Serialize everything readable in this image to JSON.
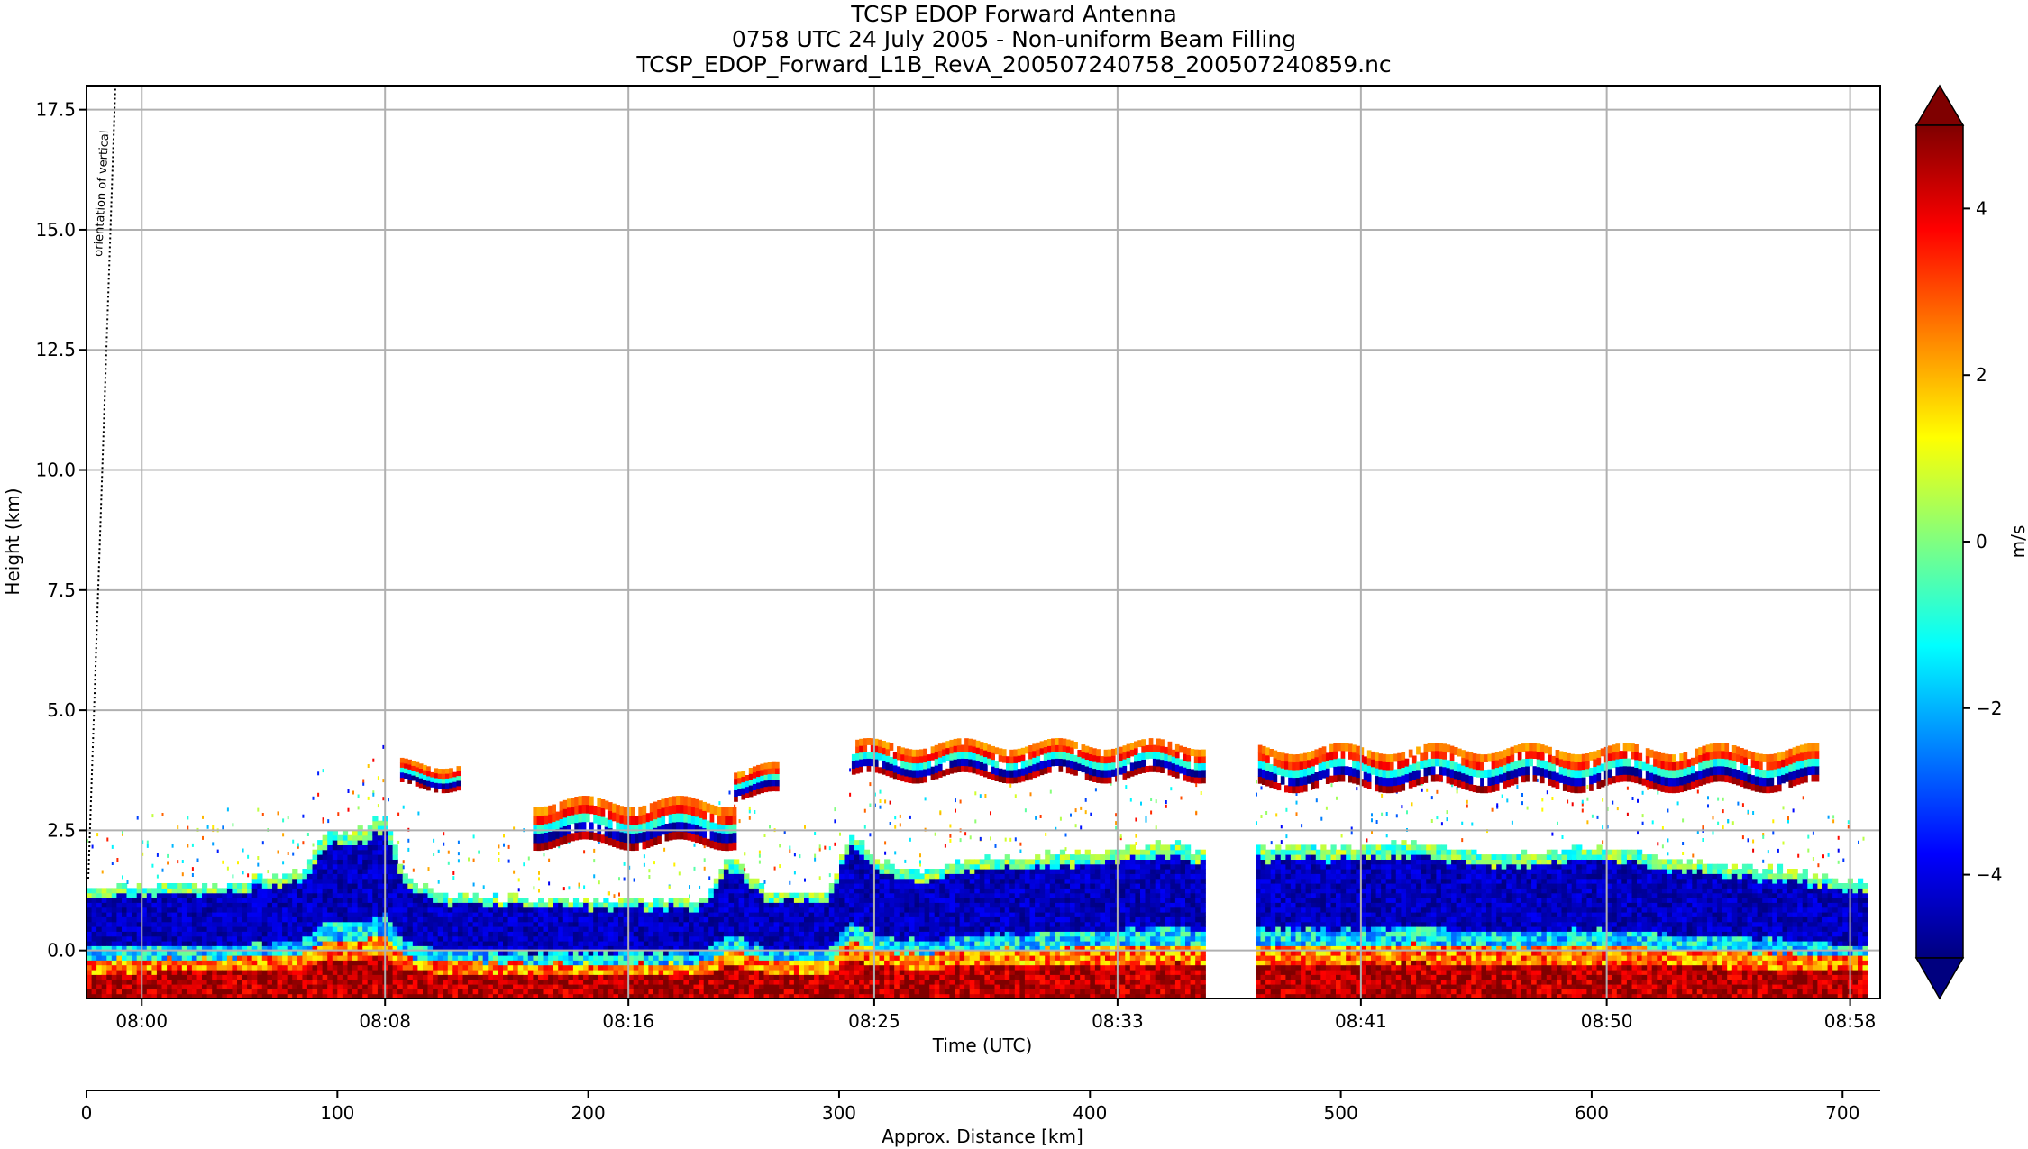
{
  "chart_data": {
    "type": "heatmap",
    "title_lines": [
      "TCSP EDOP Forward Antenna",
      "0758 UTC 24 July 2005 - Non-uniform Beam Filling",
      "TCSP_EDOP_Forward_L1B_RevA_200507240758_200507240859.nc"
    ],
    "xlabel": "Time (UTC)",
    "ylabel": "Height (km)",
    "x2label": "Approx. Distance [km]",
    "colorbar_label": "m/s",
    "annotation": "orientation of vertical",
    "colormap": "jet",
    "colormap_stops": [
      "#00007f",
      "#0000ff",
      "#0080ff",
      "#00ffff",
      "#80ff80",
      "#ffff00",
      "#ff8000",
      "#ff0000",
      "#7f0000"
    ],
    "xlim_distance": [
      0,
      715
    ],
    "ylim": [
      -1.0,
      18.0
    ],
    "clim": [
      -5,
      5
    ],
    "yticks": [
      0.0,
      2.5,
      5.0,
      7.5,
      10.0,
      12.5,
      15.0,
      17.5
    ],
    "ytick_labels": [
      "0.0",
      "2.5",
      "5.0",
      "7.5",
      "10.0",
      "12.5",
      "15.0",
      "17.5"
    ],
    "time_ticks": [
      {
        "label": "08:00",
        "distance": 22
      },
      {
        "label": "08:08",
        "distance": 119
      },
      {
        "label": "08:16",
        "distance": 216
      },
      {
        "label": "08:25",
        "distance": 314
      },
      {
        "label": "08:33",
        "distance": 411
      },
      {
        "label": "08:41",
        "distance": 508
      },
      {
        "label": "08:50",
        "distance": 606
      },
      {
        "label": "08:58",
        "distance": 703
      }
    ],
    "distance_ticks": [
      0,
      100,
      200,
      300,
      400,
      500,
      600,
      700
    ],
    "distance_tick_labels": [
      "0",
      "100",
      "200",
      "300",
      "400",
      "500",
      "600",
      "700"
    ],
    "colorbar_ticks": [
      -4,
      -2,
      0,
      2,
      4
    ],
    "colorbar_tick_labels": [
      "−4",
      "−2",
      "0",
      "2",
      "4"
    ],
    "data_gaps_distance": [
      [
        0,
        0
      ],
      [
        446,
        466
      ],
      [
        710,
        715
      ]
    ],
    "surface_profile": [
      {
        "distance": 0,
        "top_km": 1.3
      },
      {
        "distance": 40,
        "top_km": 1.3
      },
      {
        "distance": 60,
        "top_km": 1.4
      },
      {
        "distance": 85,
        "top_km": 1.6
      },
      {
        "distance": 95,
        "top_km": 2.4
      },
      {
        "distance": 110,
        "top_km": 2.5
      },
      {
        "distance": 118,
        "top_km": 2.8
      },
      {
        "distance": 125,
        "top_km": 1.5
      },
      {
        "distance": 140,
        "top_km": 1.1
      },
      {
        "distance": 200,
        "top_km": 1.0
      },
      {
        "distance": 245,
        "top_km": 1.0
      },
      {
        "distance": 255,
        "top_km": 1.9
      },
      {
        "distance": 270,
        "top_km": 1.2
      },
      {
        "distance": 295,
        "top_km": 1.1
      },
      {
        "distance": 303,
        "top_km": 2.4
      },
      {
        "distance": 315,
        "top_km": 1.8
      },
      {
        "distance": 330,
        "top_km": 1.6
      },
      {
        "distance": 360,
        "top_km": 1.9
      },
      {
        "distance": 400,
        "top_km": 2.0
      },
      {
        "distance": 430,
        "top_km": 2.2
      },
      {
        "distance": 445,
        "top_km": 2.0
      },
      {
        "distance": 467,
        "top_km": 2.1
      },
      {
        "distance": 500,
        "top_km": 2.1
      },
      {
        "distance": 525,
        "top_km": 2.2
      },
      {
        "distance": 560,
        "top_km": 1.9
      },
      {
        "distance": 600,
        "top_km": 2.1
      },
      {
        "distance": 640,
        "top_km": 1.8
      },
      {
        "distance": 680,
        "top_km": 1.6
      },
      {
        "distance": 710,
        "top_km": 1.3
      }
    ],
    "cloud_layers": [
      {
        "from": 178,
        "to": 258,
        "base_km": 2.2,
        "top_km": 3.1
      },
      {
        "from": 125,
        "to": 148,
        "base_km": 3.4,
        "top_km": 3.9
      },
      {
        "from": 258,
        "to": 275,
        "base_km": 3.2,
        "top_km": 3.8
      },
      {
        "from": 305,
        "to": 445,
        "base_km": 3.6,
        "top_km": 4.3
      },
      {
        "from": 467,
        "to": 690,
        "base_km": 3.4,
        "top_km": 4.2
      }
    ]
  }
}
